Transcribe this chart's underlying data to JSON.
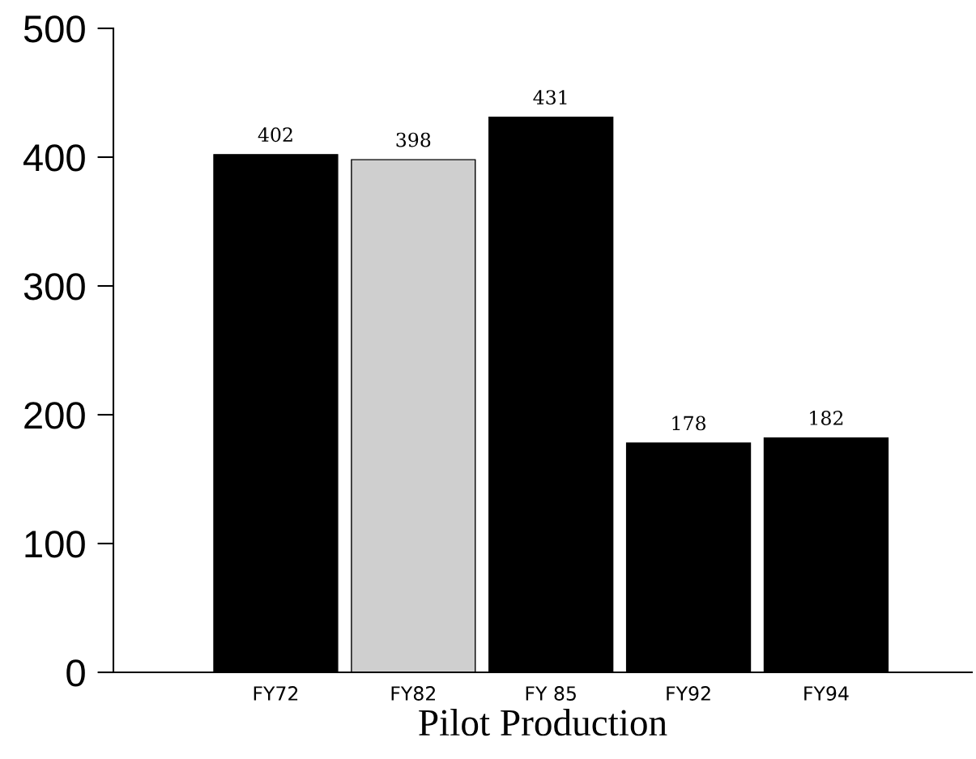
{
  "chart_data": {
    "type": "bar",
    "xlabel": "Pilot Production",
    "categories": [
      "FY72",
      "FY82",
      "FY 85",
      "FY92",
      "FY94"
    ],
    "values": [
      402,
      398,
      431,
      178,
      182
    ],
    "colors": [
      "#000000",
      "#cfcfcf",
      "#000000",
      "#000000",
      "#000000"
    ],
    "ylim": [
      0,
      500
    ],
    "yticks": [
      0,
      100,
      200,
      300,
      400,
      500
    ],
    "data_labels": true,
    "grid": false,
    "legend": false
  }
}
